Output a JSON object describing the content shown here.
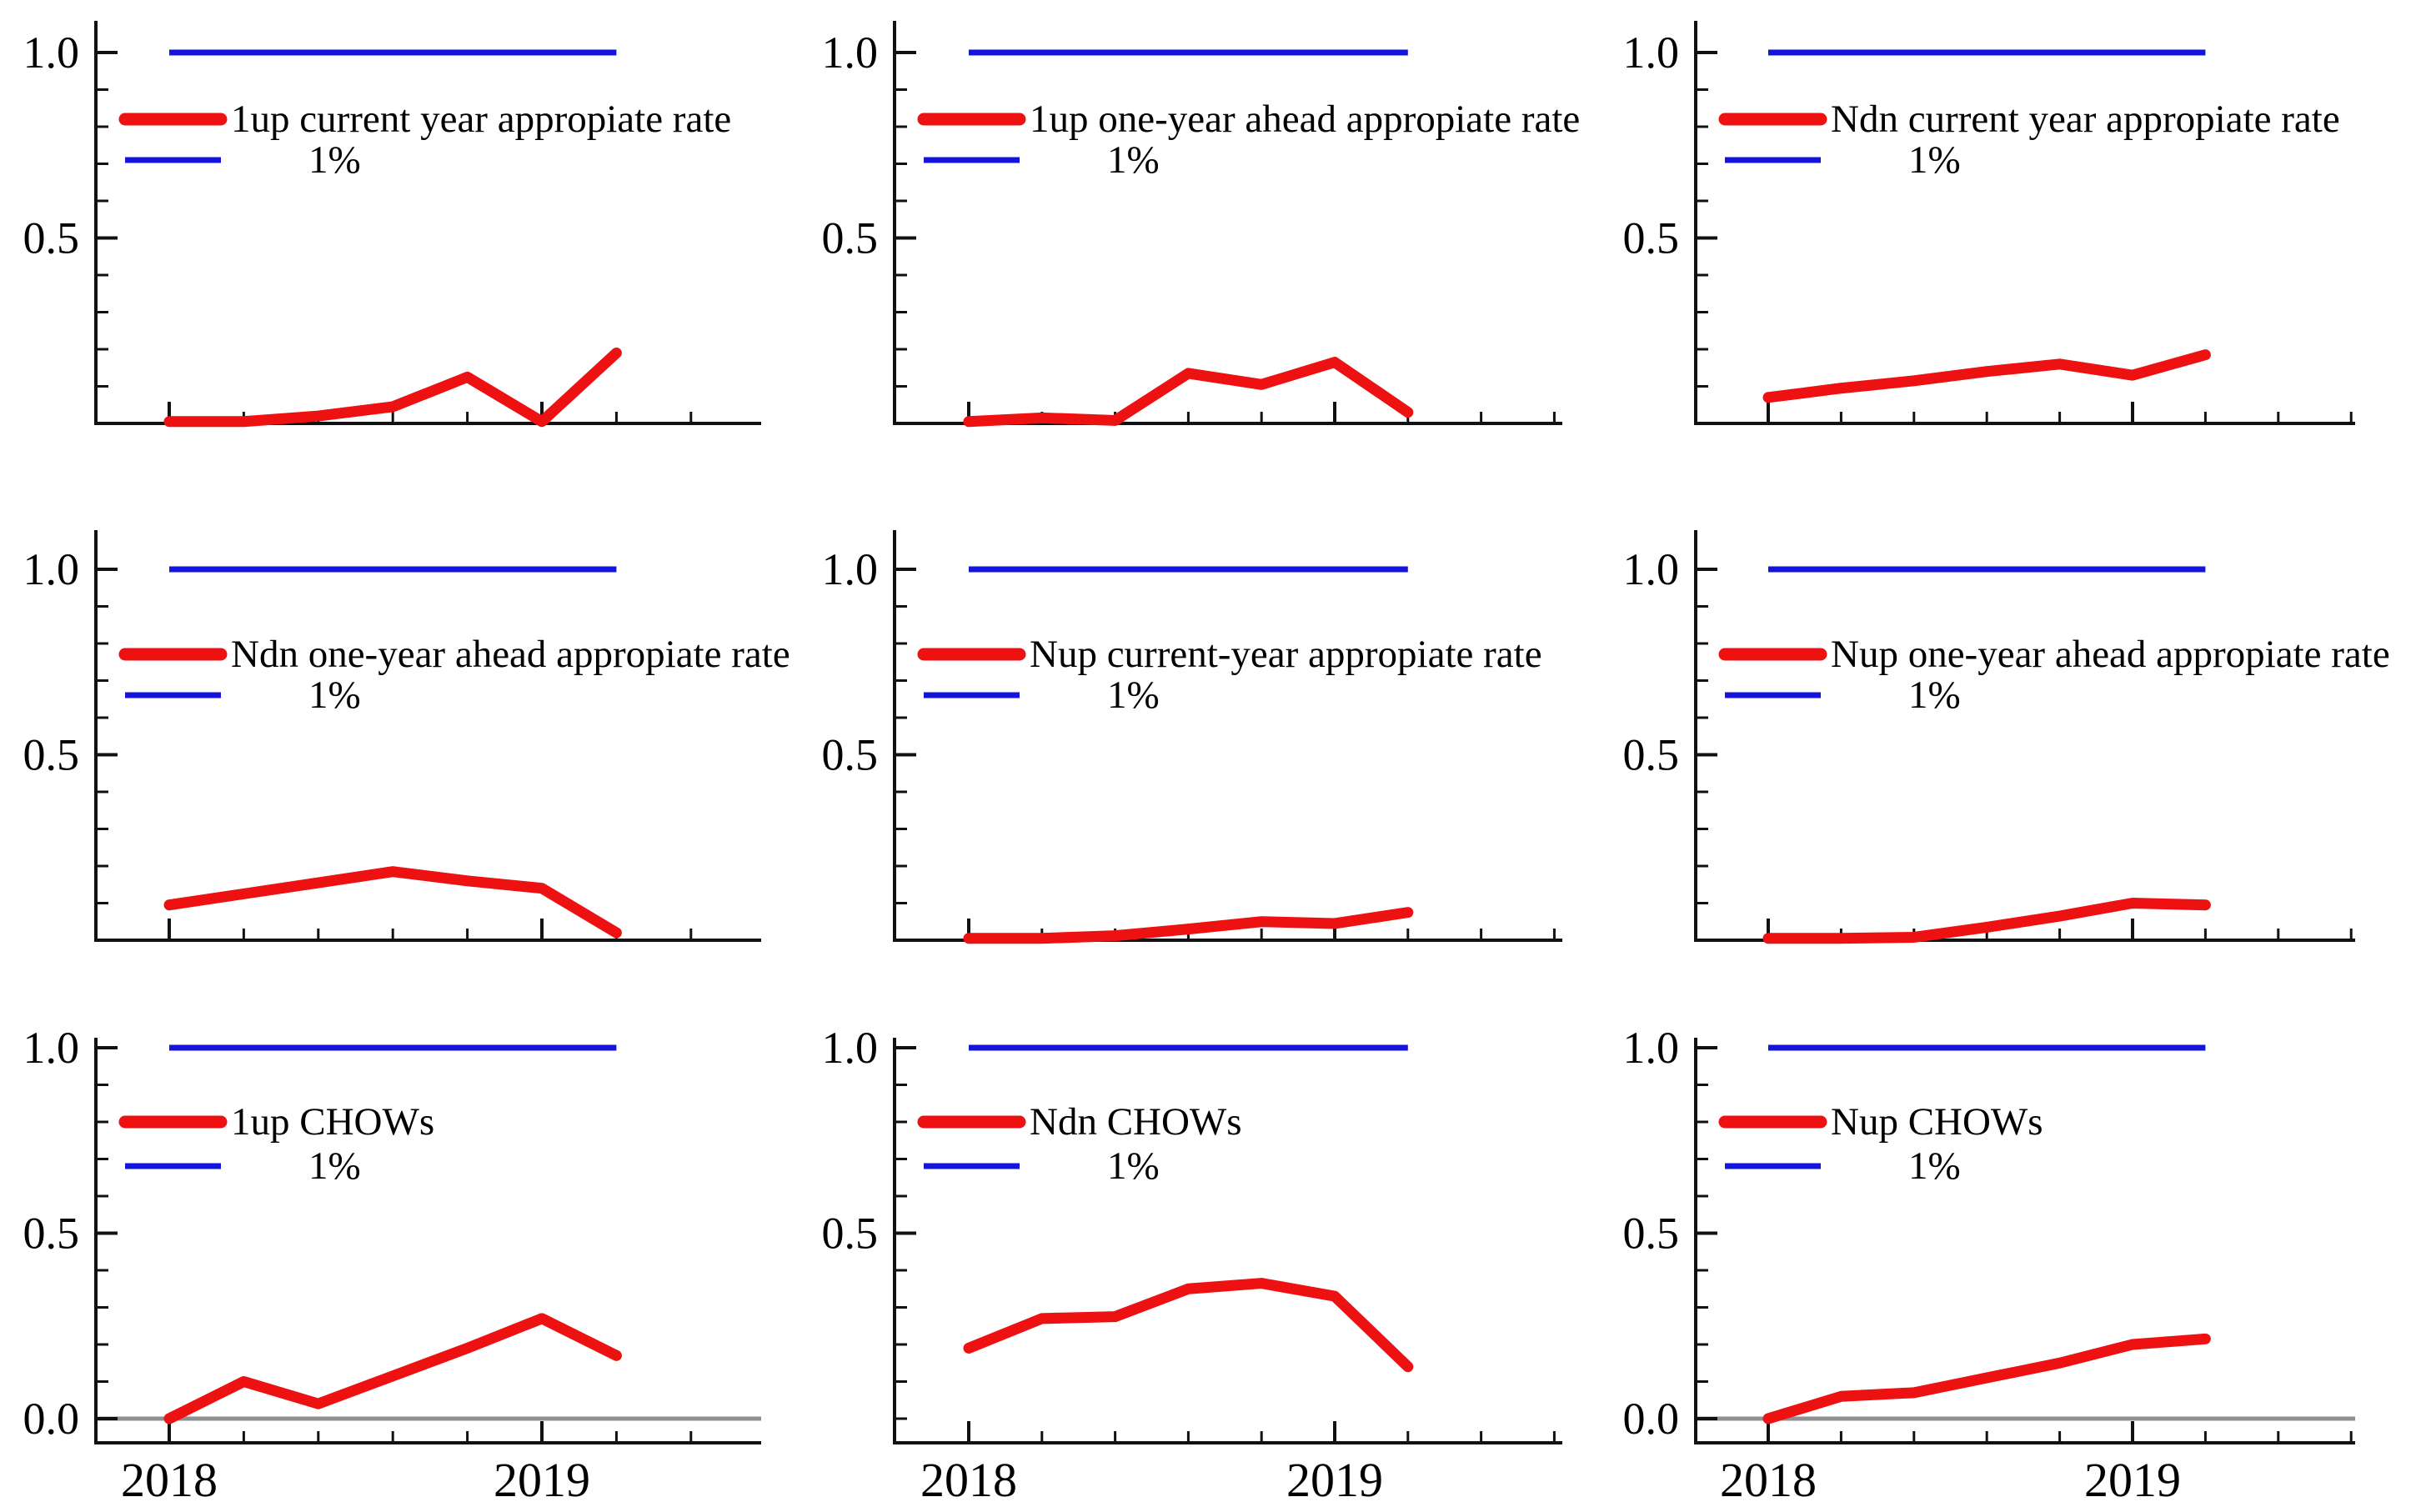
{
  "figure": {
    "background": "#ffffff",
    "colors": {
      "red": "#ee1111",
      "blue": "#1414dd",
      "axis": "#111111",
      "zero_line": "#909090",
      "text": "#000000"
    }
  },
  "chart_data": [
    {
      "id": "1up-current-year",
      "type": "line",
      "row": 0,
      "col": 0,
      "legend": [
        "1up current year appropiate rate",
        "1%"
      ],
      "x": [
        2018.0,
        2018.2,
        2018.4,
        2018.6,
        2018.8,
        2019.0,
        2019.2
      ],
      "red_values": [
        0.005,
        0.005,
        0.02,
        0.045,
        0.125,
        0.005,
        0.19
      ],
      "blue_value": 1.0,
      "y_ticks": [
        {
          "v": 1.0,
          "label": "1.0"
        },
        {
          "v": 0.5,
          "label": "0.5"
        }
      ],
      "x_tick_labels": [],
      "zero_line": false,
      "ylim": [
        0,
        1.1
      ],
      "xlim": [
        2017.8,
        2019.6
      ]
    },
    {
      "id": "1up-one-year-ahead",
      "type": "line",
      "row": 0,
      "col": 1,
      "legend": [
        "1up one-year ahead appropiate rate",
        "1%"
      ],
      "x": [
        2018.0,
        2018.2,
        2018.4,
        2018.6,
        2018.8,
        2019.0,
        2019.2
      ],
      "red_values": [
        0.005,
        0.015,
        0.008,
        0.135,
        0.105,
        0.165,
        0.03
      ],
      "blue_value": 1.0,
      "y_ticks": [
        {
          "v": 1.0,
          "label": "1.0"
        },
        {
          "v": 0.5,
          "label": "0.5"
        }
      ],
      "x_tick_labels": [],
      "zero_line": false,
      "ylim": [
        0,
        1.1
      ],
      "xlim": [
        2017.8,
        2019.6
      ]
    },
    {
      "id": "ndn-current-year",
      "type": "line",
      "row": 0,
      "col": 2,
      "legend": [
        "Ndn current year appropiate rate",
        "1%"
      ],
      "x": [
        2018.0,
        2018.2,
        2018.4,
        2018.6,
        2018.8,
        2019.0,
        2019.2
      ],
      "red_values": [
        0.07,
        0.095,
        0.115,
        0.14,
        0.16,
        0.13,
        0.185
      ],
      "blue_value": 1.0,
      "y_ticks": [
        {
          "v": 1.0,
          "label": "1.0"
        },
        {
          "v": 0.5,
          "label": "0.5"
        }
      ],
      "x_tick_labels": [],
      "zero_line": false,
      "ylim": [
        0,
        1.1
      ],
      "xlim": [
        2017.8,
        2019.6
      ]
    },
    {
      "id": "ndn-one-year-ahead",
      "type": "line",
      "row": 1,
      "col": 0,
      "legend": [
        "Ndn one-year ahead appropiate rate",
        "1%"
      ],
      "x": [
        2018.0,
        2018.2,
        2018.4,
        2018.6,
        2018.8,
        2019.0,
        2019.2
      ],
      "red_values": [
        0.095,
        0.125,
        0.155,
        0.185,
        0.16,
        0.14,
        0.02
      ],
      "blue_value": 1.0,
      "y_ticks": [
        {
          "v": 1.0,
          "label": "1.0"
        },
        {
          "v": 0.5,
          "label": "0.5"
        }
      ],
      "x_tick_labels": [],
      "zero_line": false,
      "ylim": [
        0,
        1.1
      ],
      "xlim": [
        2017.8,
        2019.6
      ]
    },
    {
      "id": "nup-current-year",
      "type": "line",
      "row": 1,
      "col": 1,
      "legend": [
        "Nup current-year appropiate rate",
        "1%"
      ],
      "x": [
        2018.0,
        2018.2,
        2018.4,
        2018.6,
        2018.8,
        2019.0,
        2019.2
      ],
      "red_values": [
        0.005,
        0.005,
        0.012,
        0.03,
        0.05,
        0.045,
        0.075
      ],
      "blue_value": 1.0,
      "y_ticks": [
        {
          "v": 1.0,
          "label": "1.0"
        },
        {
          "v": 0.5,
          "label": "0.5"
        }
      ],
      "x_tick_labels": [],
      "zero_line": false,
      "ylim": [
        0,
        1.1
      ],
      "xlim": [
        2017.8,
        2019.6
      ]
    },
    {
      "id": "nup-one-year-ahead",
      "type": "line",
      "row": 1,
      "col": 2,
      "legend": [
        "Nup one-year ahead appropiate rate",
        "1%"
      ],
      "x": [
        2018.0,
        2018.2,
        2018.4,
        2018.6,
        2018.8,
        2019.0,
        2019.2
      ],
      "red_values": [
        0.005,
        0.005,
        0.008,
        0.035,
        0.065,
        0.1,
        0.095
      ],
      "blue_value": 1.0,
      "y_ticks": [
        {
          "v": 1.0,
          "label": "1.0"
        },
        {
          "v": 0.5,
          "label": "0.5"
        }
      ],
      "x_tick_labels": [],
      "zero_line": false,
      "ylim": [
        0,
        1.1
      ],
      "xlim": [
        2017.8,
        2019.6
      ]
    },
    {
      "id": "1up-chows",
      "type": "line",
      "row": 2,
      "col": 0,
      "legend": [
        "1up CHOWs",
        "1%"
      ],
      "x": [
        2018.0,
        2018.2,
        2018.4,
        2018.6,
        2018.8,
        2019.0,
        2019.2
      ],
      "red_values": [
        0.0,
        0.1,
        0.04,
        0.115,
        0.19,
        0.27,
        0.17
      ],
      "blue_value": 1.0,
      "y_ticks": [
        {
          "v": 1.0,
          "label": "1.0"
        },
        {
          "v": 0.5,
          "label": "0.5"
        },
        {
          "v": 0.0,
          "label": "0.0"
        }
      ],
      "x_tick_labels": [
        {
          "v": 2018,
          "label": "2018"
        },
        {
          "v": 2019,
          "label": "2019"
        }
      ],
      "zero_line": true,
      "ylim": [
        -0.07,
        1.04
      ],
      "xlim": [
        2017.8,
        2019.6
      ]
    },
    {
      "id": "ndn-chows",
      "type": "line",
      "row": 2,
      "col": 1,
      "legend": [
        "Ndn CHOWs",
        "1%"
      ],
      "x": [
        2018.0,
        2018.2,
        2018.4,
        2018.6,
        2018.8,
        2019.0,
        2019.2
      ],
      "red_values": [
        0.19,
        0.27,
        0.275,
        0.35,
        0.365,
        0.33,
        0.14
      ],
      "blue_value": 1.0,
      "y_ticks": [
        {
          "v": 1.0,
          "label": "1.0"
        },
        {
          "v": 0.5,
          "label": "0.5"
        }
      ],
      "x_tick_labels": [
        {
          "v": 2018,
          "label": "2018"
        },
        {
          "v": 2019,
          "label": "2019"
        }
      ],
      "zero_line": false,
      "ylim": [
        -0.07,
        1.04
      ],
      "xlim": [
        2017.8,
        2019.6
      ]
    },
    {
      "id": "nup-chows",
      "type": "line",
      "row": 2,
      "col": 2,
      "legend": [
        "Nup CHOWs",
        "1%"
      ],
      "x": [
        2018.0,
        2018.2,
        2018.4,
        2018.6,
        2018.8,
        2019.0,
        2019.2
      ],
      "red_values": [
        0.0,
        0.06,
        0.07,
        0.11,
        0.15,
        0.2,
        0.215
      ],
      "blue_value": 1.0,
      "y_ticks": [
        {
          "v": 1.0,
          "label": "1.0"
        },
        {
          "v": 0.5,
          "label": "0.5"
        },
        {
          "v": 0.0,
          "label": "0.0"
        }
      ],
      "x_tick_labels": [
        {
          "v": 2018,
          "label": "2018"
        },
        {
          "v": 2019,
          "label": "2019"
        }
      ],
      "zero_line": true,
      "ylim": [
        -0.07,
        1.04
      ],
      "xlim": [
        2017.8,
        2019.6
      ]
    }
  ]
}
